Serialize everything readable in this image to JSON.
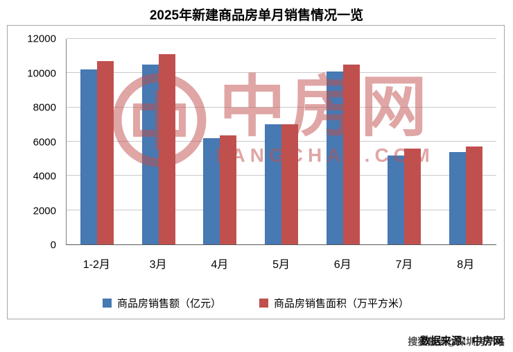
{
  "title": "2025年新建商品房单月销售情况一览",
  "chart_data": {
    "type": "bar",
    "title": "2025年新建商品房单月销售情况一览",
    "categories": [
      "1-2月",
      "3月",
      "4月",
      "5月",
      "6月",
      "7月",
      "8月"
    ],
    "series": [
      {
        "name": "商品房销售额（亿元）",
        "color": "#4779B2",
        "values": [
          10200,
          10500,
          6200,
          7000,
          10100,
          5200,
          5400
        ]
      },
      {
        "name": "商品房销售面积（万平方米）",
        "color": "#C0504D",
        "values": [
          10700,
          11100,
          6350,
          7000,
          10500,
          5600,
          5700
        ]
      }
    ],
    "xlabel": "",
    "ylabel": "",
    "ylim": [
      0,
      12000
    ],
    "yticks": [
      0,
      2000,
      4000,
      6000,
      8000,
      10000,
      12000
    ],
    "grid": true,
    "legend_position": "bottom"
  },
  "watermark": {
    "text": "中房网",
    "subtext": "FANGCHAN.COM",
    "color": "#C0504D"
  },
  "footer": {
    "caption": "数据来源：中房网",
    "overlay": "搜狐焦点@深圳房产站"
  }
}
